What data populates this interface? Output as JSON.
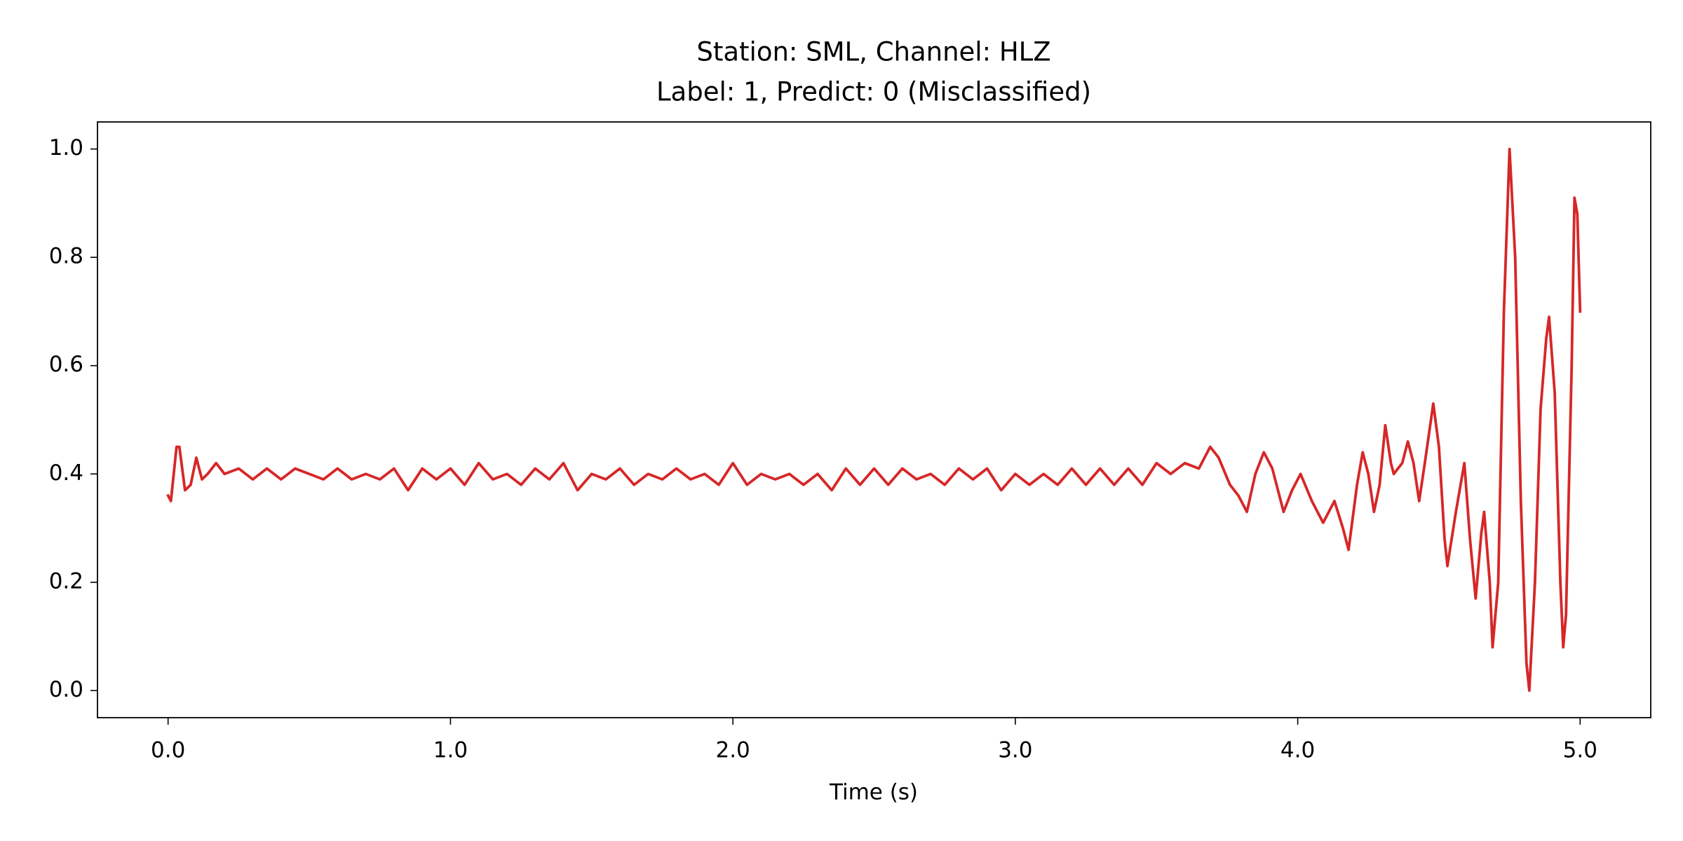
{
  "chart_data": {
    "type": "line",
    "title": "Station: SML, Channel: HLZ",
    "subtitle": "Label: 1, Predict: 0 (Misclassified)",
    "x_label": "Time (s)",
    "color": "#d62728",
    "xlim": [
      -0.25,
      5.25
    ],
    "ylim": [
      -0.05,
      1.05
    ],
    "xticks": [
      {
        "value": 0,
        "label": "0.0"
      },
      {
        "value": 1,
        "label": "1.0"
      },
      {
        "value": 2,
        "label": "2.0"
      },
      {
        "value": 3,
        "label": "3.0"
      },
      {
        "value": 4,
        "label": "4.0"
      },
      {
        "value": 5,
        "label": "5.0"
      }
    ],
    "yticks": [
      {
        "value": 0,
        "label": "0.0"
      },
      0.2,
      0.4,
      0.6,
      0.8,
      {
        "value": 1,
        "label": "1.0"
      }
    ],
    "grid": false,
    "x": [
      0,
      0.01,
      0.03,
      0.04,
      0.06,
      0.08,
      0.1,
      0.12,
      0.14,
      0.17,
      0.2,
      0.25,
      0.3,
      0.35,
      0.4,
      0.45,
      0.5,
      0.55,
      0.6,
      0.65,
      0.7,
      0.75,
      0.8,
      0.85,
      0.9,
      0.95,
      1.0,
      1.05,
      1.1,
      1.15,
      1.2,
      1.25,
      1.3,
      1.35,
      1.4,
      1.45,
      1.5,
      1.55,
      1.6,
      1.65,
      1.7,
      1.75,
      1.8,
      1.85,
      1.9,
      1.95,
      2.0,
      2.05,
      2.1,
      2.15,
      2.2,
      2.25,
      2.3,
      2.35,
      2.4,
      2.45,
      2.5,
      2.55,
      2.6,
      2.65,
      2.7,
      2.75,
      2.8,
      2.85,
      2.9,
      2.95,
      3.0,
      3.05,
      3.1,
      3.15,
      3.2,
      3.25,
      3.3,
      3.35,
      3.4,
      3.45,
      3.5,
      3.55,
      3.6,
      3.65,
      3.69,
      3.72,
      3.76,
      3.79,
      3.82,
      3.85,
      3.88,
      3.91,
      3.95,
      3.98,
      4.01,
      4.05,
      4.09,
      4.13,
      4.16,
      4.18,
      4.21,
      4.23,
      4.25,
      4.27,
      4.29,
      4.31,
      4.33,
      4.34,
      4.37,
      4.39,
      4.41,
      4.43,
      4.45,
      4.48,
      4.5,
      4.52,
      4.53,
      4.56,
      4.59,
      4.61,
      4.63,
      4.65,
      4.66,
      4.68,
      4.69,
      4.71,
      4.73,
      4.75,
      4.77,
      4.79,
      4.81,
      4.82,
      4.84,
      4.86,
      4.88,
      4.89,
      4.91,
      4.93,
      4.94,
      4.95,
      4.97,
      4.98,
      4.99,
      5.0
    ],
    "values": [
      0.36,
      0.35,
      0.45,
      0.45,
      0.37,
      0.38,
      0.43,
      0.39,
      0.4,
      0.42,
      0.4,
      0.41,
      0.39,
      0.41,
      0.39,
      0.41,
      0.4,
      0.39,
      0.41,
      0.39,
      0.4,
      0.39,
      0.41,
      0.37,
      0.41,
      0.39,
      0.41,
      0.38,
      0.42,
      0.39,
      0.4,
      0.38,
      0.41,
      0.39,
      0.42,
      0.37,
      0.4,
      0.39,
      0.41,
      0.38,
      0.4,
      0.39,
      0.41,
      0.39,
      0.4,
      0.38,
      0.42,
      0.38,
      0.4,
      0.39,
      0.4,
      0.38,
      0.4,
      0.37,
      0.41,
      0.38,
      0.41,
      0.38,
      0.41,
      0.39,
      0.4,
      0.38,
      0.41,
      0.39,
      0.41,
      0.37,
      0.4,
      0.38,
      0.4,
      0.38,
      0.41,
      0.38,
      0.41,
      0.38,
      0.41,
      0.38,
      0.42,
      0.4,
      0.42,
      0.41,
      0.45,
      0.43,
      0.38,
      0.36,
      0.33,
      0.4,
      0.44,
      0.41,
      0.33,
      0.37,
      0.4,
      0.35,
      0.31,
      0.35,
      0.3,
      0.26,
      0.38,
      0.44,
      0.4,
      0.33,
      0.38,
      0.49,
      0.42,
      0.4,
      0.42,
      0.46,
      0.42,
      0.35,
      0.42,
      0.53,
      0.45,
      0.28,
      0.23,
      0.33,
      0.42,
      0.28,
      0.17,
      0.29,
      0.33,
      0.2,
      0.08,
      0.2,
      0.7,
      1.0,
      0.8,
      0.35,
      0.05,
      0.0,
      0.2,
      0.52,
      0.65,
      0.69,
      0.55,
      0.2,
      0.08,
      0.14,
      0.6,
      0.91,
      0.88,
      0.7
    ]
  }
}
